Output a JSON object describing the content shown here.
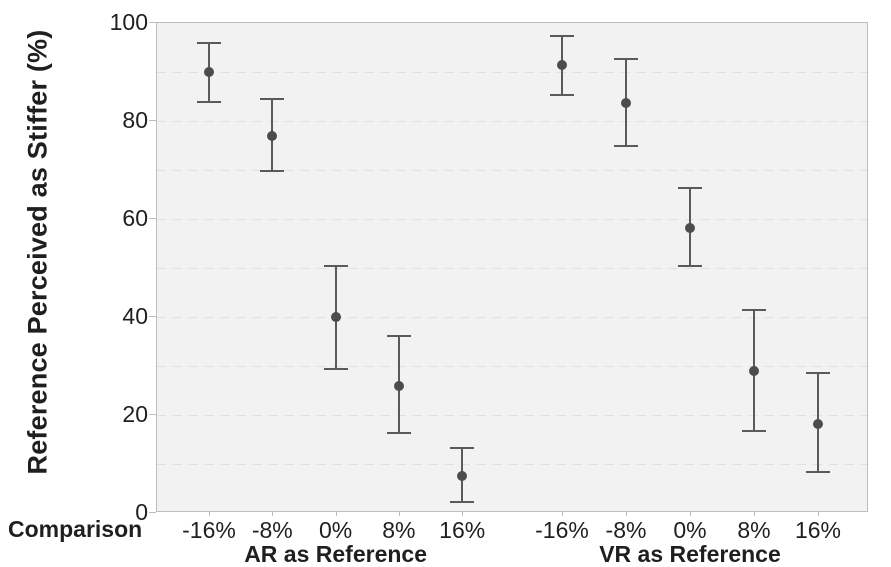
{
  "figure": {
    "y_axis": {
      "title": "Reference Perceived as Stiffer (%)",
      "tick_labels": [
        "100",
        "80",
        "60",
        "40",
        "20",
        "0"
      ],
      "tick_values": [
        100,
        80,
        60,
        40,
        20,
        0
      ]
    },
    "x_axis": {
      "corner_label": "Comparison"
    },
    "colors": {
      "plot_background": "#f2f2f2",
      "gridline": "#e0e0e0",
      "axis_border": "#bdbdbd",
      "error_bar": "#5a5a5a",
      "point": "#4c4c4c",
      "text": "#1f1f1f",
      "page_background": "#ffffff"
    }
  },
  "chart_data": {
    "type": "scatter",
    "subtype": "point-estimates-with-error-bars",
    "title": "",
    "xlabel": "Comparison",
    "ylabel": "Reference Perceived as Stiffer (%)",
    "ylim": [
      0,
      100
    ],
    "y_ticks": [
      0,
      20,
      40,
      60,
      80,
      100
    ],
    "grid": "horizontal dashed every 10",
    "legend": "none",
    "groups": [
      {
        "label": "AR as Reference",
        "categories": [
          "-16%",
          "-8%",
          "0%",
          "8%",
          "16%"
        ],
        "points": [
          {
            "category": "-16%",
            "mean": 89.7,
            "ci_low": 83.6,
            "ci_high": 95.8
          },
          {
            "category": "-8%",
            "mean": 76.7,
            "ci_low": 69.5,
            "ci_high": 84.2
          },
          {
            "category": "0%",
            "mean": 39.7,
            "ci_low": 29.2,
            "ci_high": 50.2
          },
          {
            "category": "8%",
            "mean": 25.8,
            "ci_low": 16.1,
            "ci_high": 35.9
          },
          {
            "category": "16%",
            "mean": 7.3,
            "ci_low": 2.0,
            "ci_high": 13.0
          }
        ]
      },
      {
        "label": "VR as Reference",
        "categories": [
          "-16%",
          "-8%",
          "0%",
          "8%",
          "16%"
        ],
        "points": [
          {
            "category": "-16%",
            "mean": 91.3,
            "ci_low": 85.2,
            "ci_high": 97.2
          },
          {
            "category": "-8%",
            "mean": 83.4,
            "ci_low": 74.6,
            "ci_high": 92.4
          },
          {
            "category": "0%",
            "mean": 57.9,
            "ci_low": 50.2,
            "ci_high": 66.1
          },
          {
            "category": "8%",
            "mean": 28.7,
            "ci_low": 16.5,
            "ci_high": 41.2
          },
          {
            "category": "16%",
            "mean": 17.9,
            "ci_low": 8.2,
            "ci_high": 28.3
          }
        ]
      }
    ]
  }
}
